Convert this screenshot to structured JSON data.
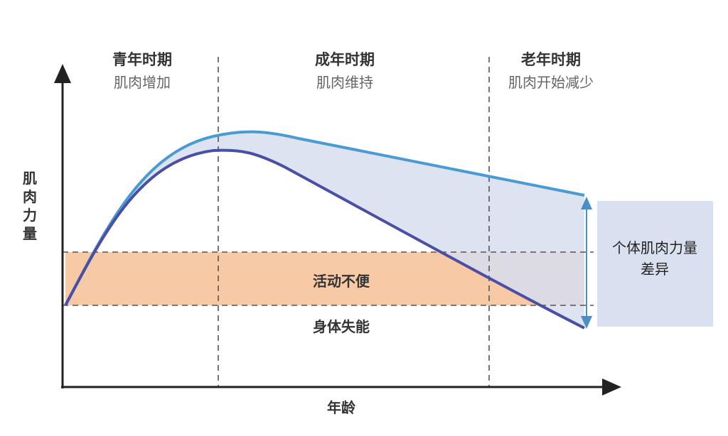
{
  "phases": [
    {
      "title": "青年时期",
      "subtitle": "肌肉增加"
    },
    {
      "title": "成年时期",
      "subtitle": "肌肉维持"
    },
    {
      "title": "老年时期",
      "subtitle": "肌肉开始减少"
    }
  ],
  "y_axis_label": "肌肉力量",
  "x_axis_label": "年龄",
  "zones": {
    "band": "活动不便",
    "below": "身体失能"
  },
  "annotation": "个体肌肉力量差异"
}
